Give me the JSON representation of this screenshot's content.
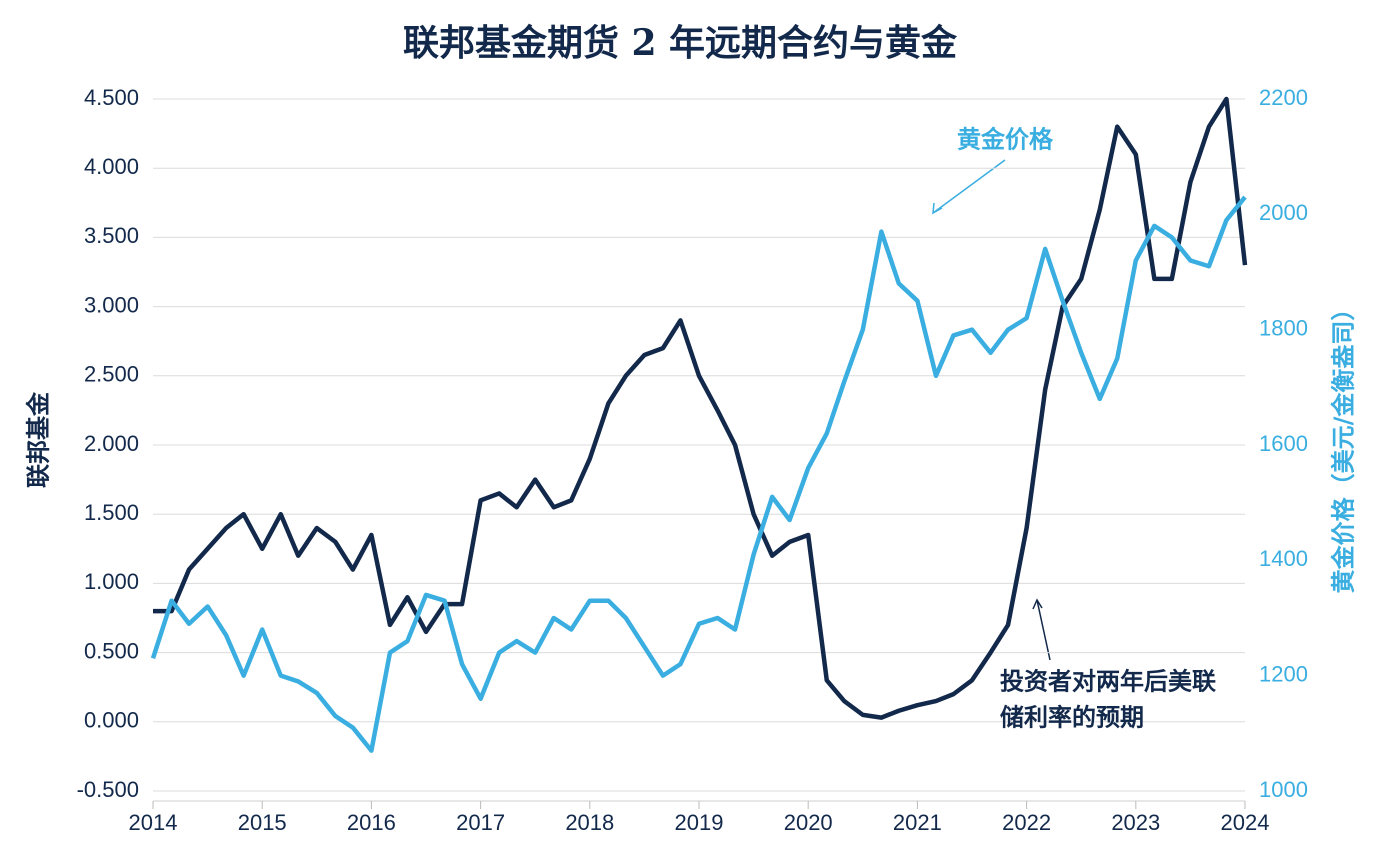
{
  "chart_data": {
    "type": "line",
    "title": "联邦基金期货 2 年远期合约与黄金",
    "y_label": "联邦基金",
    "y2_label": "黄金价格（美元/金衡盎司）",
    "annotations": [
      {
        "lines": [
          "黄金价格"
        ],
        "color": "#3aaee0"
      },
      {
        "lines": [
          "投资者对两年后美联",
          "储利率的预期"
        ],
        "color": "#13294b"
      }
    ],
    "x": [
      2014,
      2014.17,
      2014.33,
      2014.5,
      2014.67,
      2014.83,
      2015,
      2015.17,
      2015.33,
      2015.5,
      2015.67,
      2015.83,
      2016,
      2016.17,
      2016.33,
      2016.5,
      2016.67,
      2016.83,
      2017,
      2017.17,
      2017.33,
      2017.5,
      2017.67,
      2017.83,
      2018,
      2018.17,
      2018.33,
      2018.5,
      2018.67,
      2018.83,
      2019,
      2019.17,
      2019.33,
      2019.5,
      2019.67,
      2019.83,
      2020,
      2020.17,
      2020.33,
      2020.5,
      2020.67,
      2020.83,
      2021,
      2021.17,
      2021.33,
      2021.5,
      2021.67,
      2021.83,
      2022,
      2022.17,
      2022.33,
      2022.5,
      2022.67,
      2022.83,
      2023,
      2023.17,
      2023.33,
      2023.5,
      2023.67,
      2023.83,
      2024
    ],
    "series": [
      {
        "color": "#13294b",
        "axis": "y",
        "values": [
          0.8,
          0.8,
          1.1,
          1.25,
          1.4,
          1.5,
          1.25,
          1.5,
          1.2,
          1.4,
          1.3,
          1.1,
          1.35,
          0.7,
          0.9,
          0.65,
          0.85,
          0.85,
          1.6,
          1.65,
          1.55,
          1.75,
          1.55,
          1.6,
          1.9,
          2.3,
          2.5,
          2.65,
          2.7,
          2.9,
          2.5,
          2.25,
          2.0,
          1.5,
          1.2,
          1.3,
          1.35,
          0.3,
          0.15,
          0.05,
          0.03,
          0.08,
          0.12,
          0.15,
          0.2,
          0.3,
          0.5,
          0.7,
          1.4,
          2.4,
          3.0,
          3.2,
          3.7,
          4.3,
          4.1,
          3.2,
          3.2,
          3.9,
          4.3,
          4.5,
          3.3
        ]
      },
      {
        "color": "#3aaee0",
        "axis": "y2",
        "values": [
          1230,
          1330,
          1290,
          1320,
          1270,
          1200,
          1280,
          1200,
          1190,
          1170,
          1130,
          1110,
          1070,
          1240,
          1260,
          1340,
          1330,
          1220,
          1160,
          1240,
          1260,
          1240,
          1300,
          1280,
          1330,
          1330,
          1300,
          1250,
          1200,
          1220,
          1290,
          1300,
          1280,
          1410,
          1510,
          1470,
          1560,
          1620,
          1710,
          1800,
          1970,
          1880,
          1850,
          1720,
          1790,
          1800,
          1760,
          1800,
          1820,
          1940,
          1850,
          1760,
          1680,
          1750,
          1920,
          1980,
          1960,
          1920,
          1910,
          1990,
          2030
        ]
      }
    ],
    "xlim": [
      2014,
      2024
    ],
    "xticks": [
      2014,
      2015,
      2016,
      2017,
      2018,
      2019,
      2020,
      2021,
      2022,
      2023,
      2024
    ],
    "ylim": [
      -0.5,
      4.5
    ],
    "yticks": [
      {
        "value": -0.5,
        "label": "-0.500"
      },
      {
        "value": 0,
        "label": "0.000"
      },
      {
        "value": 0.5,
        "label": "0.500"
      },
      {
        "value": 1,
        "label": "1.000"
      },
      {
        "value": 1.5,
        "label": "1.500"
      },
      {
        "value": 2,
        "label": "2.000"
      },
      {
        "value": 2.5,
        "label": "2.500"
      },
      {
        "value": 3,
        "label": "3.000"
      },
      {
        "value": 3.5,
        "label": "3.500"
      },
      {
        "value": 4,
        "label": "4.000"
      },
      {
        "value": 4.5,
        "label": "4.500"
      }
    ],
    "y2lim": [
      1000,
      2200
    ],
    "y2ticks": [
      1000,
      1200,
      1400,
      1600,
      1800,
      2000,
      2200
    ],
    "grid": true
  }
}
